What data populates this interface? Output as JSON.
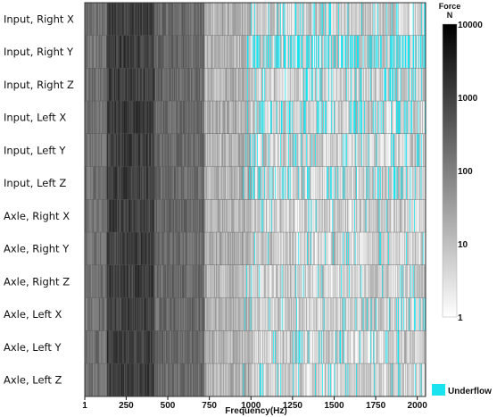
{
  "chart_data": {
    "type": "heatmap",
    "title": "",
    "xlabel": "Frequency(Hz)",
    "ylabel": "",
    "x_ticks": [
      1,
      250,
      500,
      750,
      1000,
      1250,
      1500,
      1750,
      2000
    ],
    "xlim": [
      1,
      2050
    ],
    "rows": [
      "Input, Right X",
      "Input, Right Y",
      "Input, Right Z",
      "Input, Left X",
      "Input, Left Y",
      "Input, Left Z",
      "Axle, Right X",
      "Axle, Right Y",
      "Axle, Right Z",
      "Axle, Left X",
      "Axle, Left Y",
      "Axle, Left Z"
    ],
    "colorbar": {
      "title_line1": "Force",
      "title_line2": "N",
      "scale": "log",
      "range": [
        1,
        10000
      ],
      "tick_labels": [
        "10000",
        "1000",
        "100",
        "10",
        "1"
      ],
      "tick_values": [
        10000,
        1000,
        100,
        10,
        1
      ],
      "colors": {
        "high": "#000000",
        "low": "#ffffff"
      }
    },
    "underflow": {
      "label": "Underflow",
      "color": "#19e3ef"
    },
    "bands": [
      {
        "from": 1,
        "to": 130,
        "level_range": [
          60,
          400
        ]
      },
      {
        "from": 130,
        "to": 420,
        "level_range": [
          400,
          3000
        ]
      },
      {
        "from": 420,
        "to": 720,
        "level_range": [
          80,
          600
        ]
      },
      {
        "from": 720,
        "to": 1000,
        "level_range": [
          4,
          60
        ]
      },
      {
        "from": 1000,
        "to": 2050,
        "level_range": [
          1,
          30
        ]
      }
    ],
    "underflow_regions": [
      {
        "from": 950,
        "to": 2050,
        "note_density": [
          0.1,
          0.35,
          0.12,
          0.2,
          0.12,
          0.15,
          0.05,
          0.05,
          0.05,
          0.08,
          0.06,
          0.08
        ]
      }
    ]
  }
}
